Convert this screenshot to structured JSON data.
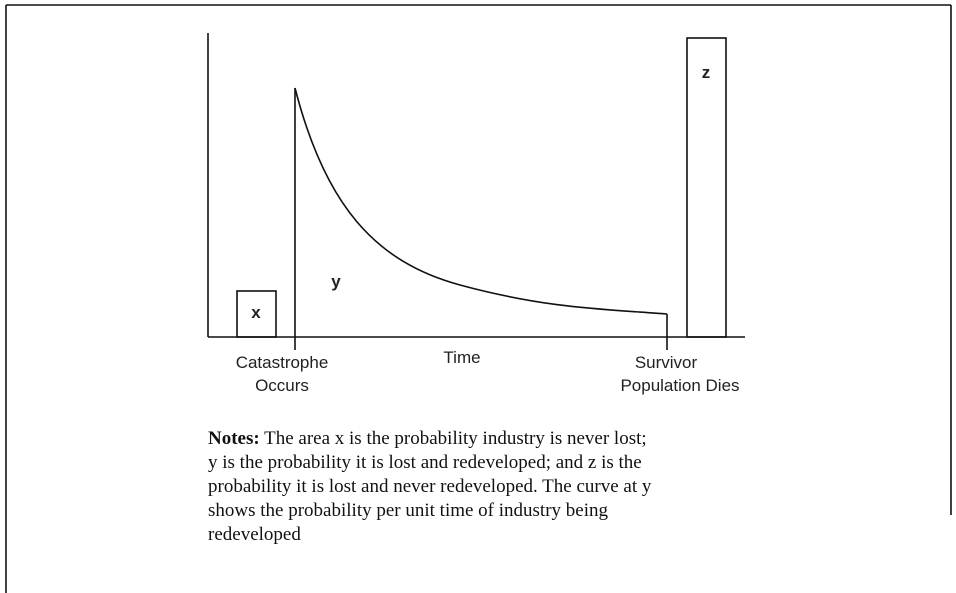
{
  "diagram": {
    "areas": {
      "x": "x",
      "y": "y",
      "z": "z"
    },
    "axis_labels": {
      "catastrophe": [
        "Catastrophe",
        "Occurs"
      ],
      "time": "Time",
      "survivor": [
        "Survivor",
        "Population Dies"
      ]
    },
    "notes": {
      "lead": "Notes:",
      "lines": [
        " The area x is the probability industry is never lost;",
        "y is the probability it is lost and redeveloped; and z is the",
        "probability it is lost and never redeveloped. The curve at y",
        "shows the probability per unit time of industry being",
        "redeveloped"
      ]
    }
  }
}
